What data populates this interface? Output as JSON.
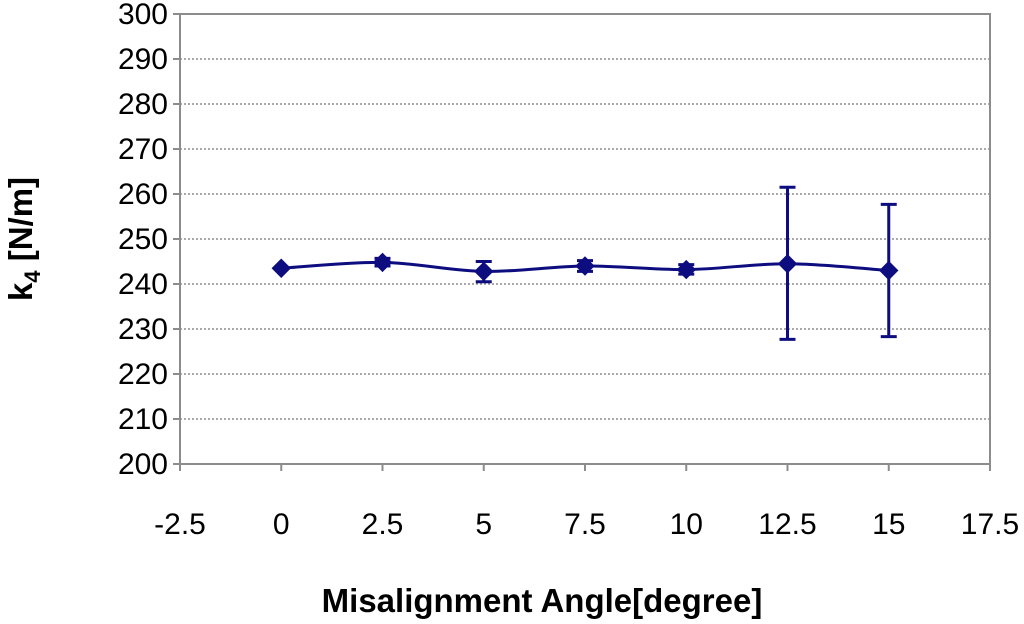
{
  "chart_data": {
    "type": "line",
    "title": "",
    "xlabel": "Misalignment Angle[degree]",
    "ylabel": "k",
    "ylabel_subscript": "4",
    "ylabel_suffix": " [N/m]",
    "xlim": [
      -2.5,
      17.5
    ],
    "ylim": [
      200,
      300
    ],
    "x_ticks": [
      -2.5,
      0,
      2.5,
      5,
      7.5,
      10,
      12.5,
      15,
      17.5
    ],
    "x_tick_labels": [
      "-2.5",
      "0",
      "2.5",
      "5",
      "7.5",
      "10",
      "12.5",
      "15",
      "17.5"
    ],
    "y_ticks": [
      200,
      210,
      220,
      230,
      240,
      250,
      260,
      270,
      280,
      290,
      300
    ],
    "y_tick_labels": [
      "200",
      "210",
      "220",
      "230",
      "240",
      "250",
      "260",
      "270",
      "280",
      "290",
      "300"
    ],
    "grid": "horizontal dotted",
    "legend": "none",
    "series": [
      {
        "x": [
          0,
          2.5,
          5,
          7.5,
          10,
          12.5,
          15
        ],
        "values": [
          243.5,
          244.8,
          242.8,
          244.0,
          243.2,
          244.5,
          243.0
        ],
        "error_low": [
          243.5,
          244.0,
          240.5,
          242.8,
          242.2,
          227.7,
          228.3
        ],
        "error_high": [
          243.5,
          245.7,
          245.0,
          245.2,
          244.3,
          261.5,
          257.7
        ],
        "color": "#0d0d80",
        "marker": "diamond"
      }
    ]
  }
}
